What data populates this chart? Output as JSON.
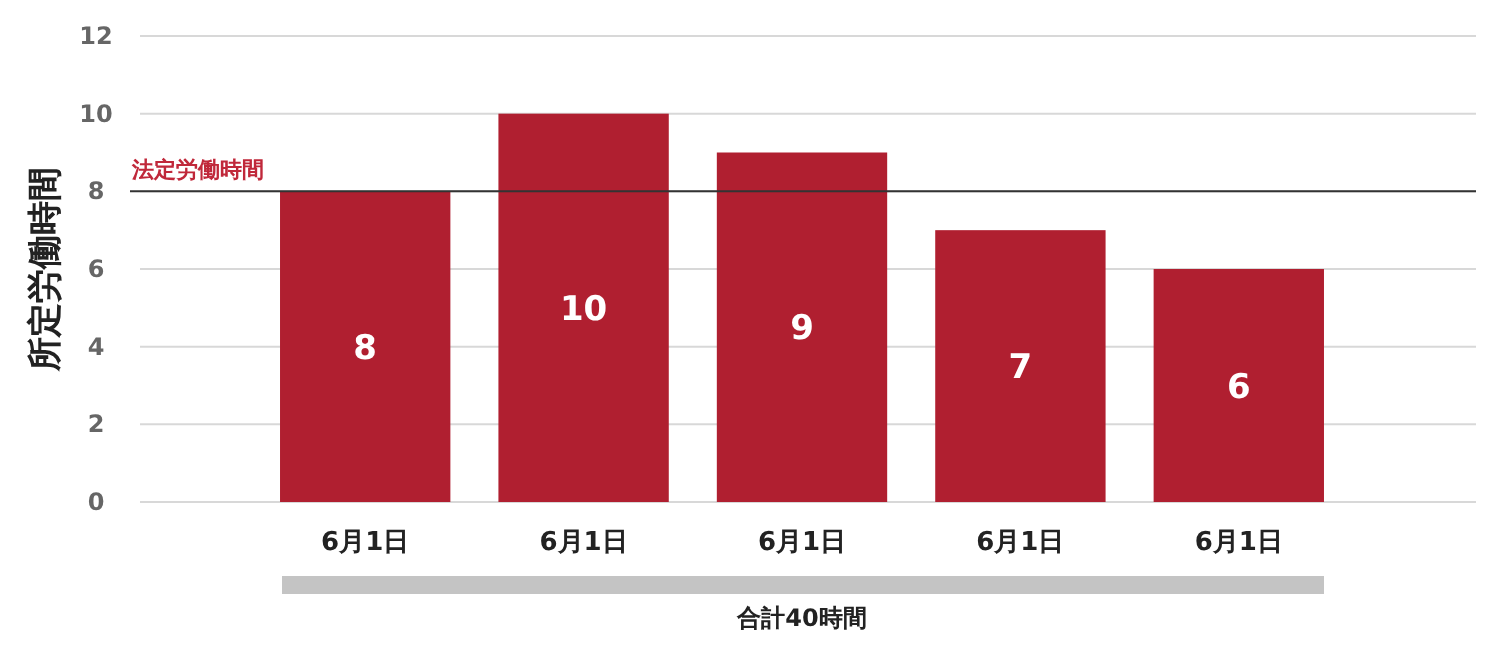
{
  "chart_data": {
    "type": "bar",
    "ylabel": "所定労働時間",
    "categories": [
      "6月1日",
      "6月1日",
      "6月1日",
      "6月1日",
      "6月1日"
    ],
    "values": [
      8,
      10,
      9,
      7,
      6
    ],
    "color": "#b01f30",
    "ylim": [
      0,
      12
    ],
    "yticks": [
      0,
      2,
      4,
      6,
      8,
      10,
      12
    ],
    "grid": "y",
    "data_labels": true,
    "ref_lines": [
      {
        "axis": "y",
        "value": 8,
        "label": "法定労働時間",
        "color": "#333333"
      }
    ],
    "annotations": [
      "合計40時間"
    ]
  }
}
